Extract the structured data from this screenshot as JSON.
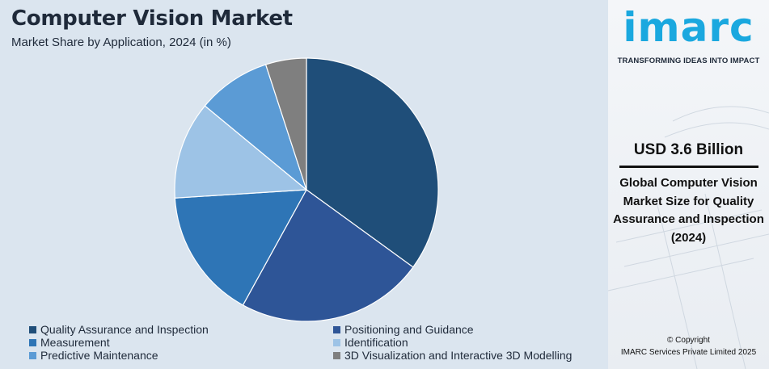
{
  "header": {
    "title": "Computer Vision Market",
    "subtitle": "Market Share by Application, 2024 (in %)"
  },
  "chart_data": {
    "type": "pie",
    "title": "Computer Vision Market",
    "subtitle": "Market Share by Application, 2024 (in %)",
    "categories": [
      "Quality Assurance and Inspection",
      "Positioning and Guidance",
      "Measurement",
      "Identification",
      "Predictive Maintenance",
      "3D Visualization and Interactive 3D Modelling"
    ],
    "values": [
      35,
      23,
      16,
      12,
      9,
      5
    ],
    "colors": [
      "#1f4e79",
      "#2e5597",
      "#2e75b6",
      "#9dc3e6",
      "#5b9bd5",
      "#7f7f7f"
    ],
    "legend_position": "bottom"
  },
  "legend": {
    "items": [
      {
        "label": "Quality Assurance and Inspection",
        "color": "#1f4e79"
      },
      {
        "label": "Positioning and Guidance",
        "color": "#2e5597"
      },
      {
        "label": "Measurement",
        "color": "#2e75b6"
      },
      {
        "label": "Identification",
        "color": "#9dc3e6"
      },
      {
        "label": "Predictive Maintenance",
        "color": "#5b9bd5"
      },
      {
        "label": "3D Visualization and Interactive 3D Modelling",
        "color": "#7f7f7f"
      }
    ]
  },
  "sidebar": {
    "logo": "imarc",
    "tagline": "TRANSFORMING IDEAS INTO IMPACT",
    "highlight_value": "USD 3.6 Billion",
    "highlight_description": "Global Computer Vision Market Size for Quality Assurance and Inspection (2024)",
    "copyright_line1": "© Copyright",
    "copyright_line2": "IMARC Services Private Limited 2025"
  },
  "colors": {
    "brand": "#1aa8df",
    "chart_background": "#dbe5ef",
    "text": "#1f2a3a"
  }
}
